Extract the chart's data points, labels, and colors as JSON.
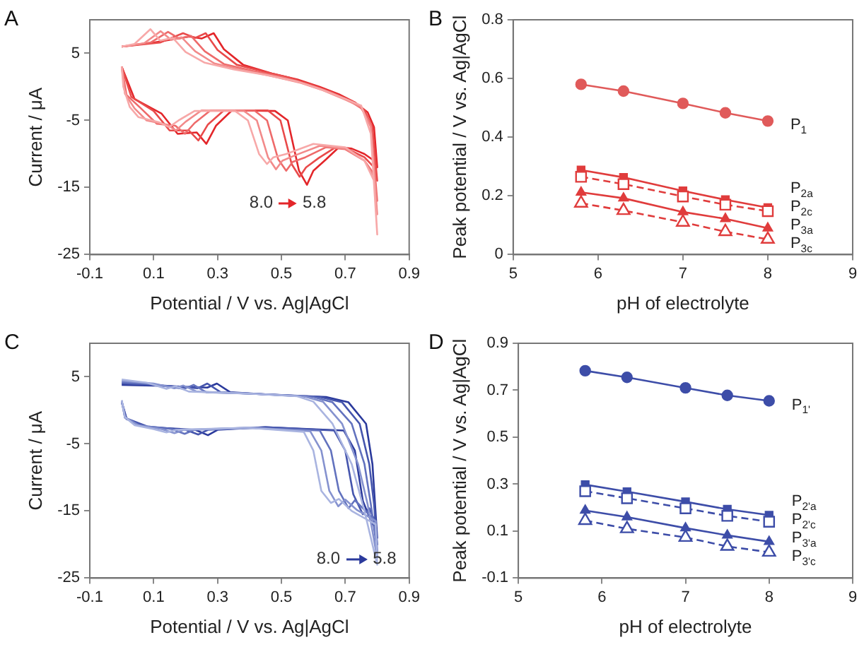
{
  "chart_data": [
    {
      "type": "line",
      "title": "A",
      "xlabel": "Potential / V vs. Ag|AgCl",
      "ylabel": "Current / μA",
      "xlim": [
        -0.1,
        0.9
      ],
      "xticks": [
        -0.1,
        0.1,
        0.3,
        0.5,
        0.7,
        0.9
      ],
      "ylim": [
        -25,
        10
      ],
      "yticks": [
        -25,
        -15,
        -5,
        5
      ],
      "marker": "none",
      "line_style": "solid",
      "annotations": [
        "8.0",
        "5.8"
      ],
      "series": [
        {
          "color": "#f7a8a8",
          "x": [
            0,
            0.04,
            0.09,
            0.12,
            0.16,
            0.2,
            0.26,
            0.35,
            0.45,
            0.55,
            0.62,
            0.7,
            0.75,
            0.78,
            0.8,
            0.79,
            0.76,
            0.7,
            0.6,
            0.515,
            0.475,
            0.455,
            0.43,
            0.395,
            0.355,
            0.228,
            0.178,
            0.148,
            0.118,
            0.052,
            0.025,
            0.005,
            0
          ],
          "values": [
            6.0,
            6.4,
            8.6,
            6.9,
            7.3,
            5.2,
            3.6,
            2.6,
            1.8,
            0.8,
            -0.3,
            -1.8,
            -2.8,
            -7,
            -22,
            -14,
            -11,
            -9,
            -8.5,
            -10,
            -10.5,
            -11.5,
            -10,
            -5,
            -3.6,
            -3.6,
            -5,
            -6,
            -5.3,
            -4.5,
            -3,
            0,
            3
          ]
        },
        {
          "color": "#f28a8a",
          "x": [
            0,
            0.07,
            0.122,
            0.155,
            0.187,
            0.23,
            0.29,
            0.38,
            0.47,
            0.56,
            0.63,
            0.7,
            0.75,
            0.78,
            0.8,
            0.79,
            0.76,
            0.7,
            0.62,
            0.543,
            0.503,
            0.483,
            0.458,
            0.423,
            0.383,
            0.25,
            0.2,
            0.17,
            0.14,
            0.078,
            0.04,
            0.01,
            0
          ],
          "values": [
            6.0,
            6.5,
            8.3,
            7.0,
            7.4,
            5.3,
            3.5,
            2.5,
            1.6,
            0.6,
            -0.5,
            -1.9,
            -3,
            -6,
            -19,
            -13.5,
            -11,
            -9.2,
            -8.8,
            -10.2,
            -11,
            -12.3,
            -10.5,
            -5,
            -3.6,
            -3.5,
            -5.2,
            -6.5,
            -5.6,
            -5,
            -3.2,
            -1,
            3
          ]
        },
        {
          "color": "#ee6a6a",
          "x": [
            0,
            0.09,
            0.145,
            0.18,
            0.217,
            0.26,
            0.32,
            0.41,
            0.5,
            0.58,
            0.65,
            0.71,
            0.75,
            0.78,
            0.8,
            0.79,
            0.76,
            0.7,
            0.64,
            0.575,
            0.535,
            0.515,
            0.49,
            0.455,
            0.415,
            0.278,
            0.228,
            0.198,
            0.168,
            0.11,
            0.06,
            0.015,
            0
          ],
          "values": [
            6.0,
            6.6,
            8.2,
            7.2,
            7.6,
            5.3,
            3.4,
            2.4,
            1.5,
            0.4,
            -0.7,
            -2,
            -3.2,
            -5.5,
            -17,
            -13,
            -11,
            -9.3,
            -9,
            -10.5,
            -11.2,
            -12.5,
            -10.8,
            -5,
            -3.5,
            -3.5,
            -5.4,
            -7,
            -5.8,
            -5.5,
            -3.2,
            -1.2,
            3
          ]
        },
        {
          "color": "#e94a4a",
          "x": [
            0,
            0.12,
            0.192,
            0.23,
            0.263,
            0.3,
            0.36,
            0.45,
            0.53,
            0.6,
            0.66,
            0.72,
            0.76,
            0.785,
            0.8,
            0.79,
            0.76,
            0.71,
            0.67,
            0.617,
            0.577,
            0.557,
            0.532,
            0.497,
            0.457,
            0.32,
            0.27,
            0.24,
            0.21,
            0.15,
            0.1,
            0.03,
            0
          ],
          "values": [
            6.0,
            6.6,
            8.0,
            7.3,
            8.0,
            5.5,
            3.3,
            2.2,
            1.3,
            0.2,
            -0.9,
            -2.1,
            -3.5,
            -6,
            -14,
            -12,
            -10.5,
            -9.3,
            -9,
            -10.6,
            -12,
            -13.4,
            -11.5,
            -5,
            -3.5,
            -3.5,
            -5.6,
            -8,
            -6.5,
            -6.5,
            -3.6,
            -1.5,
            3
          ]
        },
        {
          "color": "#e3262a",
          "x": [
            0,
            0.1,
            0.212,
            0.25,
            0.288,
            0.32,
            0.38,
            0.47,
            0.55,
            0.62,
            0.68,
            0.73,
            0.77,
            0.79,
            0.8,
            0.79,
            0.76,
            0.72,
            0.68,
            0.64,
            0.6,
            0.58,
            0.555,
            0.52,
            0.48,
            0.345,
            0.295,
            0.265,
            0.235,
            0.175,
            0.125,
            0.04,
            0
          ],
          "values": [
            6.0,
            6.6,
            7.5,
            7.2,
            8.0,
            5.6,
            3.3,
            2.0,
            1.1,
            0,
            -1.1,
            -2.3,
            -3.8,
            -6,
            -12,
            -11,
            -10,
            -9.2,
            -9,
            -10.8,
            -12.5,
            -14.6,
            -12.5,
            -5,
            -3.6,
            -3.5,
            -5.8,
            -8.5,
            -6.8,
            -7,
            -4,
            -1.8,
            3
          ]
        }
      ]
    },
    {
      "type": "line",
      "title": "B",
      "xlabel": "pH of electrolyte",
      "ylabel": "Peak potential / V vs. Ag|AgCl",
      "xlim": [
        5,
        9
      ],
      "xticks": [
        5,
        6,
        7,
        8,
        9
      ],
      "ylim": [
        0,
        0.8
      ],
      "yticks": [
        0,
        0.2,
        0.4,
        0.6,
        0.8
      ],
      "x": [
        5.8,
        6.3,
        7,
        7.5,
        8
      ],
      "series": [
        {
          "name": "P$_{1}$",
          "color": "#e05a5a",
          "marker": "circle",
          "line_style": "solid",
          "values": [
            0.58,
            0.557,
            0.515,
            0.483,
            0.455
          ]
        },
        {
          "name": "P$_{2a}$",
          "color": "#e03c3c",
          "marker": "square",
          "line_style": "solid",
          "values": [
            0.288,
            0.263,
            0.217,
            0.187,
            0.16
          ]
        },
        {
          "name": "P$_{2c}$",
          "color": "#e03c3c",
          "marker": "square",
          "line_style": "dashed",
          "values": [
            0.265,
            0.24,
            0.198,
            0.17,
            0.148
          ]
        },
        {
          "name": "P$_{3a}$",
          "color": "#e03c3c",
          "marker": "triangle",
          "line_style": "solid",
          "values": [
            0.212,
            0.192,
            0.145,
            0.122,
            0.09
          ]
        },
        {
          "name": "P$_{3c}$",
          "color": "#e03c3c",
          "marker": "triangle",
          "line_style": "dashed",
          "values": [
            0.175,
            0.15,
            0.11,
            0.078,
            0.052
          ]
        }
      ]
    },
    {
      "type": "line",
      "title": "C",
      "xlabel": "Potential / V vs. Ag|AgCl",
      "ylabel": "Current / μA",
      "xlim": [
        -0.1,
        0.9
      ],
      "xticks": [
        -0.1,
        0.1,
        0.3,
        0.5,
        0.7,
        0.9
      ],
      "ylim": [
        -25,
        10
      ],
      "yticks": [
        -25,
        -15,
        -5,
        5
      ],
      "marker": "none",
      "line_style": "solid",
      "annotations": [
        "8.0",
        "5.8"
      ],
      "series": [
        {
          "color": "#a9b4e0",
          "x": [
            0,
            0.08,
            0.14,
            0.168,
            0.21,
            0.4,
            0.55,
            0.6,
            0.66,
            0.72,
            0.76,
            0.8,
            0.795,
            0.72,
            0.68,
            0.655,
            0.625,
            0.6,
            0.57,
            0.4,
            0.17,
            0.14,
            0.1,
            0.04,
            0.01,
            0
          ],
          "values": [
            4.6,
            4.1,
            3.2,
            3.6,
            2.8,
            2.5,
            2.1,
            1.3,
            -2,
            -8,
            -15,
            -23,
            -17,
            -15,
            -13.2,
            -13.8,
            -12,
            -6,
            -3.2,
            -2.6,
            -2.9,
            -3.3,
            -2.8,
            -2.2,
            -1,
            1.5
          ]
        },
        {
          "color": "#8592cf",
          "x": [
            0,
            0.1,
            0.165,
            0.193,
            0.235,
            0.4,
            0.57,
            0.63,
            0.69,
            0.74,
            0.77,
            0.8,
            0.795,
            0.735,
            0.7,
            0.678,
            0.65,
            0.625,
            0.59,
            0.4,
            0.195,
            0.165,
            0.125,
            0.05,
            0.01,
            0
          ],
          "values": [
            4.4,
            4.0,
            3.3,
            3.7,
            2.8,
            2.5,
            2.1,
            1.3,
            -2,
            -8,
            -14,
            -22,
            -16.5,
            -14.8,
            -13.3,
            -14.3,
            -12,
            -6,
            -3.1,
            -2.6,
            -2.9,
            -3.4,
            -2.8,
            -2.2,
            -1,
            1.5
          ]
        },
        {
          "color": "#6272be",
          "x": [
            0,
            0.1,
            0.195,
            0.225,
            0.265,
            0.4,
            0.6,
            0.66,
            0.72,
            0.76,
            0.78,
            0.8,
            0.795,
            0.755,
            0.73,
            0.71,
            0.68,
            0.655,
            0.62,
            0.4,
            0.227,
            0.197,
            0.157,
            0.06,
            0.01,
            0
          ],
          "values": [
            4.2,
            3.9,
            3.2,
            3.8,
            2.7,
            2.5,
            2.0,
            1.2,
            -2,
            -8,
            -14,
            -21,
            -16.5,
            -14.6,
            -13.4,
            -14.6,
            -12,
            -6,
            -3,
            -2.6,
            -2.9,
            -3.5,
            -2.8,
            -2.3,
            -1.1,
            1.4
          ]
        },
        {
          "color": "#4555ad",
          "x": [
            0,
            0.1,
            0.238,
            0.268,
            0.31,
            0.45,
            0.62,
            0.69,
            0.745,
            0.775,
            0.79,
            0.8,
            0.795,
            0.775,
            0.755,
            0.725,
            0.7,
            0.665,
            0.45,
            0.27,
            0.24,
            0.2,
            0.08,
            0.015,
            0
          ],
          "values": [
            4.0,
            3.8,
            3.3,
            4.0,
            2.7,
            2.4,
            2.0,
            1.2,
            -2,
            -8,
            -14,
            -20,
            -16.8,
            -14.6,
            -15.5,
            -12.5,
            -6,
            -3,
            -2.5,
            -2.9,
            -3.6,
            -2.9,
            -2.4,
            -1.2,
            1.3
          ]
        },
        {
          "color": "#2b3a9c",
          "x": [
            0,
            0.1,
            0.268,
            0.298,
            0.34,
            0.45,
            0.64,
            0.71,
            0.765,
            0.785,
            0.8,
            0.795,
            0.783,
            0.755,
            0.73,
            0.695,
            0.45,
            0.3,
            0.27,
            0.23,
            0.08,
            0.015,
            0
          ],
          "values": [
            3.8,
            3.7,
            3.4,
            4.0,
            2.7,
            2.4,
            2.0,
            1.2,
            -2,
            -8,
            -19,
            -17.5,
            -16.8,
            -13.5,
            -6,
            -3,
            -2.5,
            -2.9,
            -3.7,
            -2.9,
            -2.5,
            -1.3,
            1.2
          ]
        }
      ]
    },
    {
      "type": "line",
      "title": "D",
      "xlabel": "pH of electrolyte",
      "ylabel": "Peak potential / V vs. Ag|AgCl",
      "xlim": [
        5,
        9
      ],
      "xticks": [
        5,
        6,
        7,
        8,
        9
      ],
      "ylim": [
        -0.1,
        0.9
      ],
      "yticks": [
        -0.1,
        0.1,
        0.3,
        0.5,
        0.7,
        0.9
      ],
      "x": [
        5.8,
        6.3,
        7,
        7.5,
        8
      ],
      "series": [
        {
          "name": "P$_{1'}$",
          "color": "#3d4da8",
          "marker": "circle",
          "line_style": "solid",
          "values": [
            0.783,
            0.755,
            0.71,
            0.678,
            0.655
          ]
        },
        {
          "name": "P$_{2'a}$",
          "color": "#3d4da8",
          "marker": "square",
          "line_style": "solid",
          "values": [
            0.298,
            0.268,
            0.225,
            0.193,
            0.168
          ]
        },
        {
          "name": "P$_{2'c}$",
          "color": "#3d4da8",
          "marker": "square",
          "line_style": "dashed",
          "values": [
            0.27,
            0.24,
            0.197,
            0.165,
            0.14
          ]
        },
        {
          "name": "P$_{3'a}$",
          "color": "#3d4da8",
          "marker": "triangle",
          "line_style": "solid",
          "values": [
            0.188,
            0.16,
            0.113,
            0.082,
            0.055
          ]
        },
        {
          "name": "P$_{3'c}$",
          "color": "#3d4da8",
          "marker": "triangle",
          "line_style": "dashed",
          "values": [
            0.145,
            0.11,
            0.073,
            0.035,
            0.01
          ]
        }
      ]
    }
  ]
}
